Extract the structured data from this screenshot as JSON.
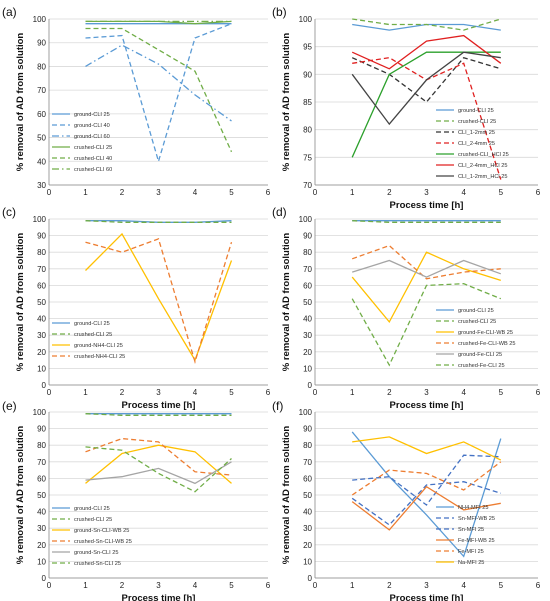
{
  "chart_data": [
    {
      "type": "line",
      "panel_label": "(a)",
      "xlabel": "",
      "ylabel": "% removal of AD from solution",
      "xlim": [
        0,
        6
      ],
      "ylim": [
        30,
        100
      ],
      "xticks": [
        0,
        1,
        2,
        3,
        4,
        5,
        6
      ],
      "yticks": [
        30,
        40,
        50,
        60,
        70,
        80,
        90,
        100
      ],
      "x": [
        1,
        2,
        3,
        4,
        5
      ],
      "legend": "bottom-left",
      "series": [
        {
          "name": "ground-CLI 25",
          "color": "#5b9bd5",
          "dash": "solid",
          "values": [
            98,
            98,
            98,
            98,
            98
          ]
        },
        {
          "name": "ground-CLI 40",
          "color": "#5b9bd5",
          "dash": "dash",
          "values": [
            92,
            93,
            40,
            92,
            98
          ]
        },
        {
          "name": "ground-CLI 60",
          "color": "#5b9bd5",
          "dash": "dashdot",
          "values": [
            80,
            89,
            81,
            68,
            57
          ]
        },
        {
          "name": "crushed-CLI 25",
          "color": "#70ad47",
          "dash": "solid",
          "values": [
            99,
            99,
            99,
            98,
            99
          ]
        },
        {
          "name": "crushed-CLI 40",
          "color": "#70ad47",
          "dash": "dash",
          "values": [
            96,
            96,
            87,
            78,
            44
          ]
        },
        {
          "name": "crushed-CLI 60",
          "color": "#70ad47",
          "dash": "dashdot",
          "values": [
            99,
            99,
            99,
            99,
            99
          ]
        }
      ]
    },
    {
      "type": "line",
      "panel_label": "(b)",
      "xlabel": "Process time [h]",
      "ylabel": "% removal of AD from solution",
      "xlim": [
        0,
        6
      ],
      "ylim": [
        70,
        100
      ],
      "xticks": [
        0,
        1,
        2,
        3,
        4,
        5,
        6
      ],
      "yticks": [
        70,
        75,
        80,
        85,
        90,
        95,
        100
      ],
      "x": [
        1,
        2,
        3,
        4,
        5
      ],
      "legend": "bottom-right",
      "series": [
        {
          "name": "ground-CLI 25",
          "color": "#5b9bd5",
          "dash": "solid",
          "values": [
            99,
            98,
            99,
            99,
            98
          ]
        },
        {
          "name": "crushed-CLI 25",
          "color": "#70ad47",
          "dash": "dash",
          "values": [
            100,
            99,
            99,
            98,
            100
          ]
        },
        {
          "name": "CLI_1-2mm 25",
          "color": "#333333",
          "dash": "dash",
          "values": [
            93,
            90,
            85,
            93,
            91
          ]
        },
        {
          "name": "CLI_2-4mm 25",
          "color": "#e02020",
          "dash": "dash",
          "values": [
            92,
            93,
            89,
            92,
            71
          ]
        },
        {
          "name": "crushed-CLI_HCl 25",
          "color": "#2ca02c",
          "dash": "solid",
          "values": [
            75,
            90,
            94,
            94,
            94
          ]
        },
        {
          "name": "CLI_2-4mm_HCl 25",
          "color": "#e02020",
          "dash": "solid",
          "values": [
            94,
            91,
            96,
            97,
            92
          ]
        },
        {
          "name": "CLI_1-2mm_HCl 25",
          "color": "#444444",
          "dash": "solid",
          "values": [
            90,
            81,
            89,
            94,
            93
          ]
        }
      ]
    },
    {
      "type": "line",
      "panel_label": "(c)",
      "xlabel": "Process time [h]",
      "ylabel": "% removal of AD from solution",
      "xlim": [
        0,
        6
      ],
      "ylim": [
        0,
        100
      ],
      "xticks": [
        0,
        1,
        2,
        3,
        4,
        5,
        6
      ],
      "yticks": [
        0,
        10,
        20,
        30,
        40,
        50,
        60,
        70,
        80,
        90,
        100
      ],
      "x": [
        1,
        2,
        3,
        4,
        5
      ],
      "legend": "bottom-left",
      "series": [
        {
          "name": "ground-CLI 25",
          "color": "#5b9bd5",
          "dash": "solid",
          "values": [
            99,
            99,
            98,
            98,
            99
          ]
        },
        {
          "name": "crushed-CLI 25",
          "color": "#70ad47",
          "dash": "dash",
          "values": [
            99,
            98,
            98,
            98,
            98
          ]
        },
        {
          "name": "ground-NH4-CLI 25",
          "color": "#ffc000",
          "dash": "solid",
          "values": [
            69,
            91,
            52,
            15,
            75
          ]
        },
        {
          "name": "crushed-NH4-CLI 25",
          "color": "#ed7d31",
          "dash": "dash",
          "values": [
            86,
            80,
            88,
            14,
            86
          ]
        }
      ]
    },
    {
      "type": "line",
      "panel_label": "(d)",
      "xlabel": "Process time [h]",
      "ylabel": "% removal of AD from solution",
      "xlim": [
        0,
        6
      ],
      "ylim": [
        0,
        100
      ],
      "xticks": [
        0,
        1,
        2,
        3,
        4,
        5,
        6
      ],
      "yticks": [
        0,
        10,
        20,
        30,
        40,
        50,
        60,
        70,
        80,
        90,
        100
      ],
      "x": [
        1,
        2,
        3,
        4,
        5
      ],
      "legend": "bottom-right",
      "series": [
        {
          "name": "ground-CLI 25",
          "color": "#5b9bd5",
          "dash": "solid",
          "values": [
            99,
            99,
            99,
            99,
            99
          ]
        },
        {
          "name": "crushed-CLI 25",
          "color": "#70ad47",
          "dash": "dash",
          "values": [
            99,
            98,
            98,
            98,
            98
          ]
        },
        {
          "name": "ground-Fe-CLI-WB 25",
          "color": "#ffc000",
          "dash": "solid",
          "values": [
            65,
            38,
            80,
            70,
            63
          ]
        },
        {
          "name": "crushed-Fe-CLI-WB 25",
          "color": "#ed7d31",
          "dash": "dash",
          "values": [
            76,
            84,
            64,
            68,
            70
          ]
        },
        {
          "name": "ground-Fe-CLI 25",
          "color": "#a5a5a5",
          "dash": "solid",
          "values": [
            68,
            75,
            65,
            75,
            67
          ]
        },
        {
          "name": "crushed-Fe-CLI 25",
          "color": "#70ad47",
          "dash": "dash",
          "values": [
            52,
            12,
            60,
            61,
            52
          ]
        }
      ]
    },
    {
      "type": "line",
      "panel_label": "(e)",
      "xlabel": "Process time [h]",
      "ylabel": "% removal of AD from solution",
      "xlim": [
        0,
        6
      ],
      "ylim": [
        0,
        100
      ],
      "xticks": [
        0,
        1,
        2,
        3,
        4,
        5,
        6
      ],
      "yticks": [
        0,
        10,
        20,
        30,
        40,
        50,
        60,
        70,
        80,
        90,
        100
      ],
      "x": [
        1,
        2,
        3,
        4,
        5
      ],
      "legend": "bottom-left",
      "series": [
        {
          "name": "ground-CLI 25",
          "color": "#5b9bd5",
          "dash": "solid",
          "values": [
            99,
            99,
            99,
            99,
            99
          ]
        },
        {
          "name": "crushed-CLI 25",
          "color": "#70ad47",
          "dash": "dash",
          "values": [
            99,
            98,
            98,
            98,
            98
          ]
        },
        {
          "name": "ground-Sn-CLI-WB 25",
          "color": "#ffc000",
          "dash": "solid",
          "values": [
            57,
            75,
            80,
            76,
            57
          ]
        },
        {
          "name": "crushed-Sn-CLI-WB 25",
          "color": "#ed7d31",
          "dash": "dash",
          "values": [
            76,
            84,
            82,
            64,
            62
          ]
        },
        {
          "name": "ground-Sn-CLI 25",
          "color": "#a5a5a5",
          "dash": "solid",
          "values": [
            59,
            61,
            66,
            57,
            70
          ]
        },
        {
          "name": "crushed-Sn-CLI 25",
          "color": "#70ad47",
          "dash": "dash",
          "values": [
            79,
            77,
            63,
            52,
            72
          ]
        }
      ]
    },
    {
      "type": "line",
      "panel_label": "(f)",
      "xlabel": "Process time [h]",
      "ylabel": "% removal of AD from solution",
      "xlim": [
        0,
        6
      ],
      "ylim": [
        0,
        100
      ],
      "xticks": [
        0,
        1,
        2,
        3,
        4,
        5,
        6
      ],
      "yticks": [
        0,
        10,
        20,
        30,
        40,
        50,
        60,
        70,
        80,
        90,
        100
      ],
      "x": [
        1,
        2,
        3,
        4,
        5
      ],
      "legend": "bottom-right",
      "series": [
        {
          "name": "NH4-MFI 25",
          "color": "#5b9bd5",
          "dash": "solid",
          "values": [
            88,
            61,
            38,
            13,
            84
          ]
        },
        {
          "name": "Sn-MFI-WB 25",
          "color": "#4472c4",
          "dash": "dash",
          "values": [
            59,
            61,
            44,
            74,
            73
          ]
        },
        {
          "name": "Sn-MFI 25",
          "color": "#4472c4",
          "dash": "dash",
          "values": [
            48,
            32,
            56,
            58,
            51
          ]
        },
        {
          "name": "Fe-MFI-WB 25",
          "color": "#ed7d31",
          "dash": "solid",
          "values": [
            46,
            29,
            55,
            41,
            45
          ]
        },
        {
          "name": "Fe-MFI 25",
          "color": "#ed7d31",
          "dash": "dash",
          "values": [
            50,
            65,
            63,
            53,
            70
          ]
        },
        {
          "name": "Na-MFI 25",
          "color": "#ffc000",
          "dash": "solid",
          "values": [
            82,
            85,
            75,
            82,
            71
          ]
        }
      ]
    }
  ]
}
